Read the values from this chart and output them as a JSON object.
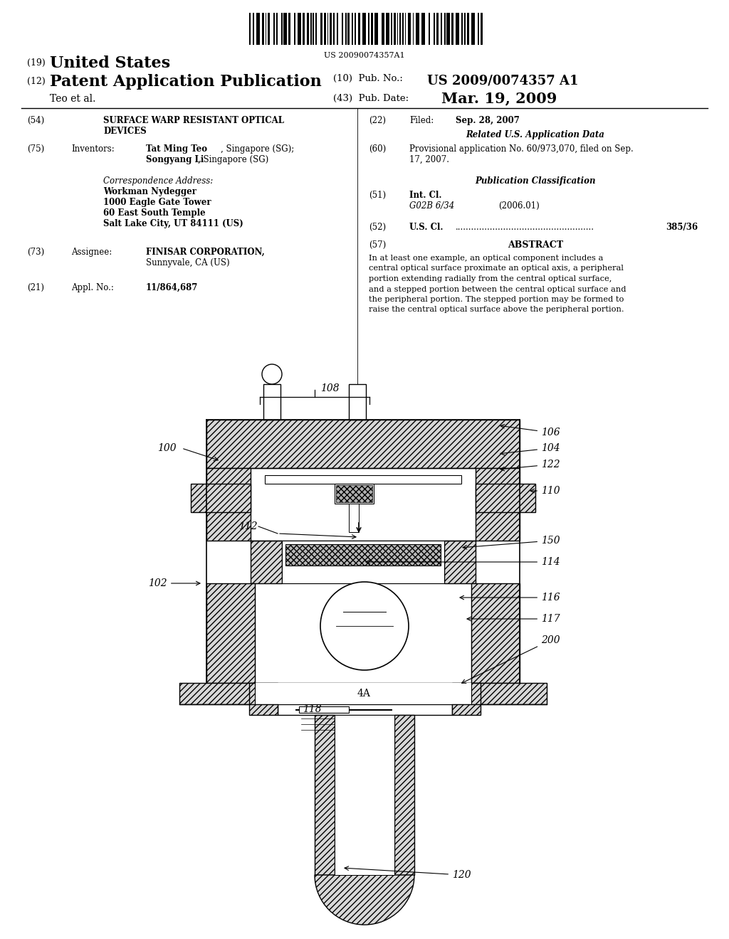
{
  "page_bg": "#ffffff",
  "barcode_text": "US 20090074357A1",
  "header_line1_num": "(19)",
  "header_line1_text": "United States",
  "header_line2_num": "(12)",
  "header_line2_text": "Patent Application Publication",
  "header_pub_num_label": "(10)  Pub. No.:",
  "header_pub_num": "US 2009/0074357 A1",
  "header_authors": "Teo et al.",
  "header_pub_date_label": "(43)  Pub. Date:",
  "header_pub_date": "Mar. 19, 2009",
  "section54_num": "(54)",
  "section54_title": "SURFACE WARP RESISTANT OPTICAL\nDEVICES",
  "section75_num": "(75)",
  "section75_label": "Inventors:",
  "section75_text": "Tat Ming Teo, Singapore (SG);\nSongyang Li, Singapore (SG)",
  "corr_label": "Correspondence Address:",
  "corr_name": "Workman Nydegger",
  "corr_addr1": "1000 Eagle Gate Tower",
  "corr_addr2": "60 East South Temple",
  "corr_addr3": "Salt Lake City, UT 84111 (US)",
  "section73_num": "(73)",
  "section73_label": "Assignee:",
  "section73_text": "FINISAR CORPORATION,\nSunnyvale, CA (US)",
  "section21_num": "(21)",
  "section21_label": "Appl. No.:",
  "section21_text": "11/864,687",
  "section22_num": "(22)",
  "section22_label": "Filed:",
  "section22_text": "Sep. 28, 2007",
  "related_header": "Related U.S. Application Data",
  "section60_num": "(60)",
  "section60_text": "Provisional application No. 60/973,070, filed on Sep.\n17, 2007.",
  "pub_class_header": "Publication Classification",
  "section51_num": "(51)",
  "section51_label": "Int. Cl.",
  "section51_class": "G02B 6/34",
  "section51_year": "(2006.01)",
  "section52_num": "(52)",
  "section52_label": "U.S. Cl.",
  "section52_val": "385/36",
  "section57_num": "(57)",
  "section57_header": "ABSTRACT",
  "abstract_text": "In at least one example, an optical component includes a\ncentral optical surface proximate an optical axis, a peripheral\nportion extending radially from the central optical surface,\nand a stepped portion between the central optical surface and\nthe peripheral portion. The stepped portion may be formed to\nraise the central optical surface above the peripheral portion."
}
